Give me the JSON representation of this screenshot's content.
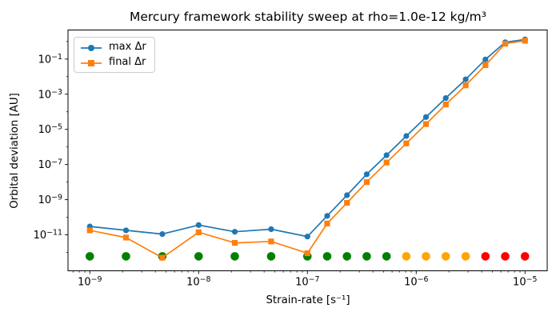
{
  "chart_data": {
    "type": "line",
    "title": "Mercury framework stability sweep at rho=1.0e-12 kg/m³",
    "xlabel": "Strain-rate [s⁻¹]",
    "ylabel": "Orbital deviation [AU]",
    "x_scale": "log",
    "y_scale": "log",
    "xlim": [
      6.3e-10,
      1.6e-05
    ],
    "ylim": [
      9e-14,
      4.5
    ],
    "grid": false,
    "x": [
      1e-09,
      2.15e-09,
      4.64e-09,
      1e-08,
      2.15e-08,
      4.64e-08,
      1e-07,
      1.52e-07,
      2.31e-07,
      3.51e-07,
      5.34e-07,
      8.11e-07,
      1.23e-06,
      1.87e-06,
      2.85e-06,
      4.33e-06,
      6.58e-06,
      1e-05
    ],
    "series": [
      {
        "name": "max Δr",
        "color": "#1f77b4",
        "marker": "circle",
        "values": [
          3e-11,
          1.8e-11,
          1.1e-11,
          3.6e-11,
          1.5e-11,
          2.1e-11,
          8e-12,
          1.2e-10,
          1.8e-09,
          2.8e-08,
          3.4e-07,
          4.2e-06,
          5e-05,
          0.0006,
          0.007,
          0.095,
          0.9,
          1.3
        ]
      },
      {
        "name": "final Δr",
        "color": "#ff7f0e",
        "marker": "square",
        "values": [
          1.8e-11,
          7e-12,
          5e-13,
          1.4e-11,
          3.5e-12,
          4.2e-12,
          9e-13,
          4.4e-11,
          6.6e-10,
          1e-08,
          1.3e-07,
          1.6e-06,
          2e-05,
          0.00026,
          0.0032,
          0.045,
          0.75,
          1.1
        ]
      }
    ],
    "status_dots": {
      "y_value": 6e-13,
      "palette": {
        "stable": "#008000",
        "warning": "#ffa500",
        "unstable": "#ff0000"
      },
      "status": [
        "stable",
        "stable",
        "stable",
        "stable",
        "stable",
        "stable",
        "stable",
        "stable",
        "stable",
        "stable",
        "stable",
        "warning",
        "warning",
        "warning",
        "warning",
        "unstable",
        "unstable",
        "unstable"
      ]
    },
    "axes": {
      "x_tick_exponents": [
        -9,
        -8,
        -7,
        -6,
        -5
      ],
      "y_tick_exponents": [
        -1,
        -3,
        -5,
        -7,
        -9,
        -11
      ],
      "y_minor_exponents": [
        0,
        -2,
        -4,
        -6,
        -8,
        -10,
        -12
      ]
    },
    "legend": {
      "position": "upper left"
    }
  }
}
